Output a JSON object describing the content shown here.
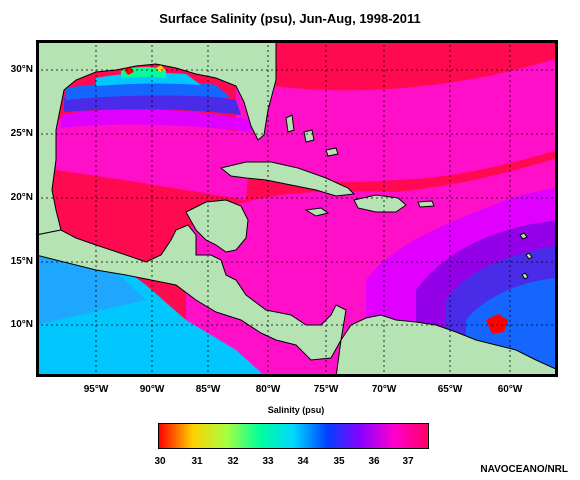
{
  "title": "Surface Salinity (psu), Jun-Aug, 1998-2011",
  "credit": "NAVOCEANO/NRL",
  "map": {
    "lat_labels": [
      "30°N",
      "25°N",
      "20°N",
      "15°N",
      "10°N"
    ],
    "lon_labels": [
      "95°W",
      "90°W",
      "85°W",
      "80°W",
      "75°W",
      "70°W",
      "65°W",
      "60°W"
    ]
  },
  "colorbar": {
    "title": "Salinity (psu)",
    "ticks": [
      "30",
      "31",
      "32",
      "33",
      "34",
      "35",
      "36",
      "37"
    ],
    "colors": [
      "#ff0000",
      "#ffd000",
      "#a8ff40",
      "#00ff9a",
      "#00d8ff",
      "#0040ff",
      "#8a00ff",
      "#ff00cc",
      "#ff0066"
    ]
  },
  "palette": {
    "land": "#b6e3b4",
    "salinity_37_plus": "#ff0a50",
    "salinity_36_5": "#ff10c8",
    "salinity_36": "#e000ff",
    "salinity_35_5": "#9400e8",
    "salinity_35": "#4a2ce8",
    "salinity_34": "#1466ff",
    "salinity_33": "#00c8ff"
  }
}
